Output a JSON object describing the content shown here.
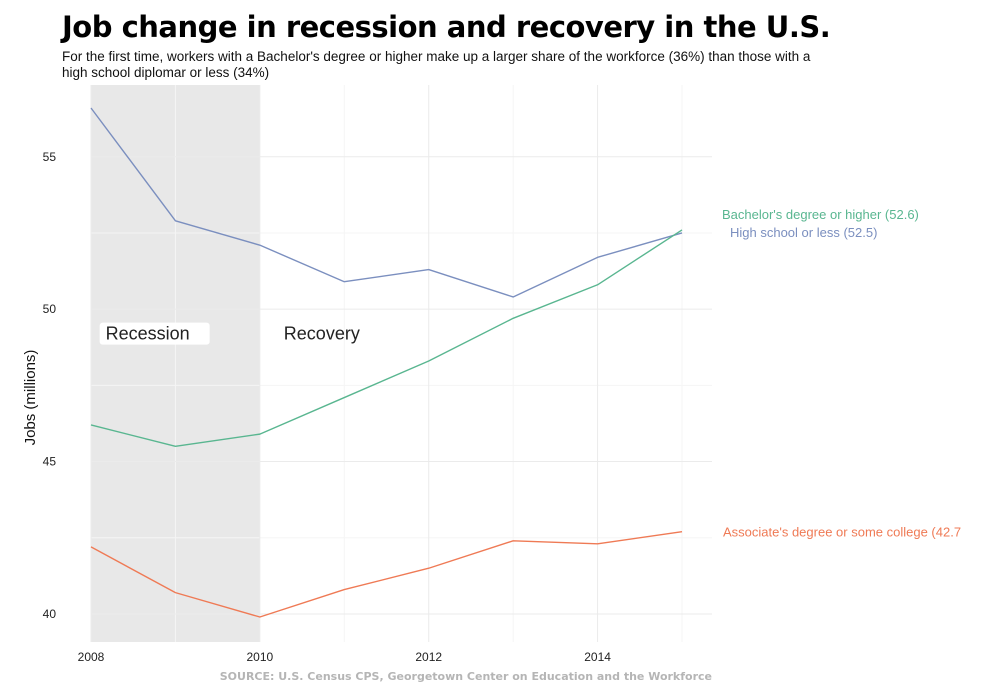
{
  "title": "Job change in recession and recovery in the U.S.",
  "subtitle": "For the first time, workers with a Bachelor's degree or higher make up a larger share of the workforce (36%) than those with a high school diplomar or less (34%)",
  "source": "SOURCE: U.S. Census CPS, Georgetown Center on Education and the Workforce",
  "chart_data": {
    "type": "line",
    "title": "Job change in recession and recovery in the U.S.",
    "ylabel": "Jobs (millions)",
    "xlabel": "",
    "x": [
      2008,
      2009,
      2010,
      2011,
      2012,
      2013,
      2014,
      2015
    ],
    "xlim": [
      2008,
      2015
    ],
    "ylim": [
      39.5,
      57
    ],
    "xticks": [
      2008,
      2010,
      2012,
      2014
    ],
    "yticks": [
      40,
      45,
      50,
      55
    ],
    "grid": true,
    "series": [
      {
        "name": "High school or less",
        "label": "High school or less (52.5)",
        "color": "#7b8fbf",
        "values": [
          56.6,
          52.9,
          52.1,
          50.9,
          51.3,
          50.4,
          51.7,
          52.5
        ]
      },
      {
        "name": "Bachelor's degree or higher",
        "label": "Bachelor's degree or higher (52.6)",
        "color": "#59b690",
        "values": [
          46.2,
          45.5,
          45.9,
          47.1,
          48.3,
          49.7,
          50.8,
          52.6
        ]
      },
      {
        "name": "Associate's degree or some college",
        "label": "Associate's degree or some college (42.7",
        "color": "#ef7a55",
        "values": [
          42.2,
          40.7,
          39.9,
          40.8,
          41.5,
          42.4,
          42.3,
          42.7
        ]
      }
    ],
    "shaded_region": {
      "from": 2008,
      "to": 2010,
      "color": "#e8e8e8"
    },
    "annotations": [
      {
        "text": "Recession",
        "x": 2008.15,
        "y": 49,
        "boxed": true
      },
      {
        "text": "Recovery",
        "x": 2010.26,
        "y": 49,
        "boxed": false
      }
    ]
  }
}
